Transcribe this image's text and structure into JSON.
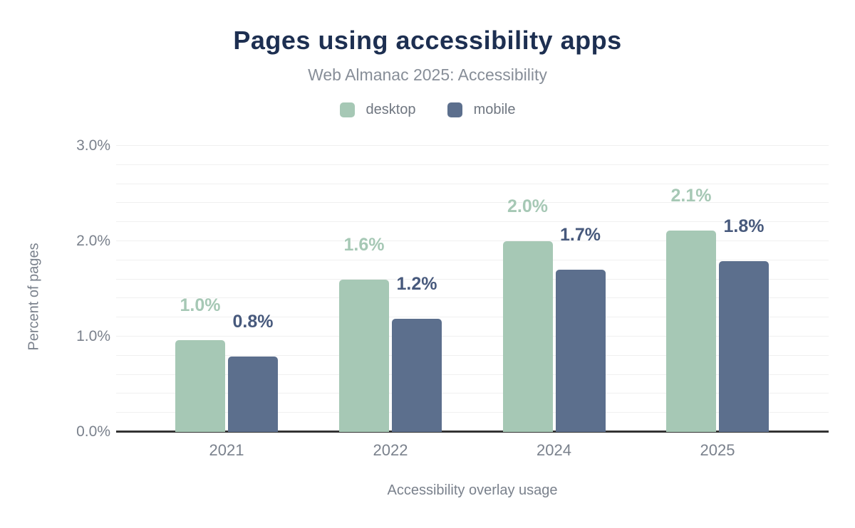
{
  "header": {
    "title": "Pages using accessibility apps",
    "subtitle": "Web Almanac 2025: Accessibility"
  },
  "chart_data": {
    "type": "bar",
    "title": "Pages using accessibility apps",
    "subtitle": "Web Almanac 2025: Accessibility",
    "categories": [
      "2021",
      "2022",
      "2024",
      "2025"
    ],
    "series": [
      {
        "name": "desktop",
        "color": "#a6c8b5",
        "label_color": "#a6c8b5",
        "values": [
          0.96,
          1.6,
          2.0,
          2.11
        ],
        "data_labels": [
          "1.0%",
          "1.6%",
          "2.0%",
          "2.1%"
        ]
      },
      {
        "name": "mobile",
        "color": "#5c6f8d",
        "label_color": "#47597c",
        "values": [
          0.79,
          1.19,
          1.7,
          1.79
        ],
        "data_labels": [
          "0.8%",
          "1.2%",
          "1.7%",
          "1.8%"
        ]
      }
    ],
    "xlabel": "Accessibility overlay usage",
    "ylabel": "Percent of pages",
    "ylim": [
      0,
      3
    ],
    "yticks": [
      {
        "value": 0,
        "label": "0.0%"
      },
      {
        "value": 1,
        "label": "1.0%"
      },
      {
        "value": 2,
        "label": "2.0%"
      },
      {
        "value": 3,
        "label": "3.0%"
      }
    ],
    "grid": true,
    "grid_step": 0.2,
    "legend_position": "top"
  },
  "colors": {
    "title": "#1d2f51",
    "subtitle": "#878e98",
    "axis_text": "#7a818c",
    "grid": "#f0f0f0",
    "axis_line": "#333333"
  }
}
